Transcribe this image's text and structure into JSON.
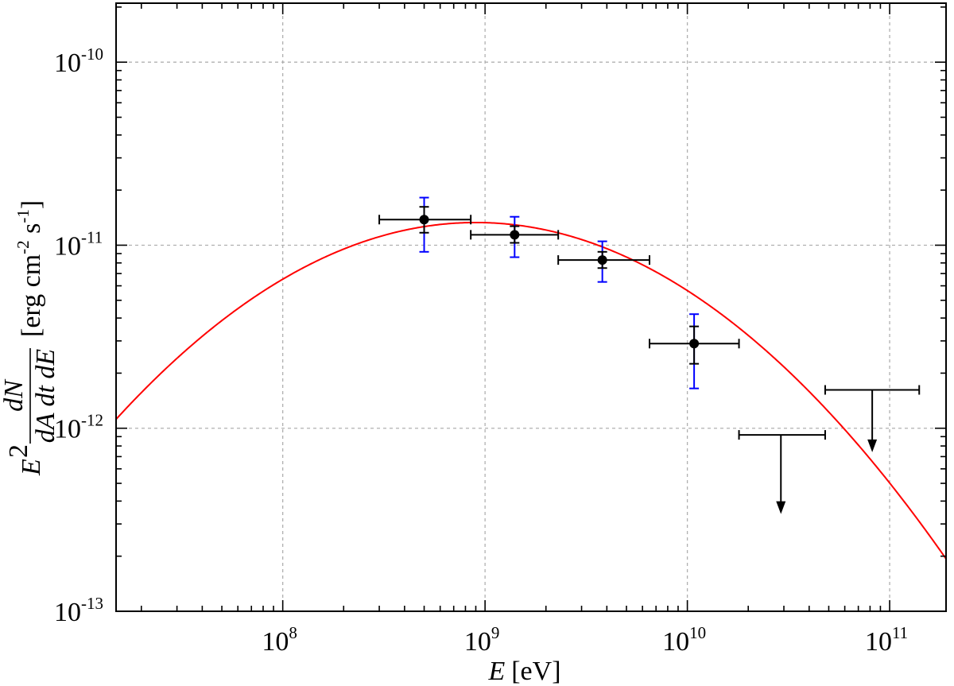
{
  "chart_data": {
    "type": "scatter",
    "xscale": "log",
    "yscale": "log",
    "xlim": [
      15000000,
      190000000000
    ],
    "ylim": [
      1e-13,
      2.1e-10
    ],
    "grid": true,
    "xticks": [
      {
        "value": 100000000,
        "base": "10",
        "exp": "8"
      },
      {
        "value": 1000000000,
        "base": "10",
        "exp": "9"
      },
      {
        "value": 10000000000,
        "base": "10",
        "exp": "10"
      },
      {
        "value": 100000000000,
        "base": "10",
        "exp": "11"
      }
    ],
    "yticks": [
      {
        "value": 1e-13,
        "base": "10",
        "exp": "-13"
      },
      {
        "value": 1e-12,
        "base": "10",
        "exp": "-12"
      },
      {
        "value": 1e-11,
        "base": "10",
        "exp": "-11"
      },
      {
        "value": 1e-10,
        "base": "10",
        "exp": "-10"
      }
    ],
    "xlabel": {
      "var": "E",
      "unit": "[eV]"
    },
    "ylabel": {
      "prefix": "E",
      "prefix_exp": "2",
      "numerator": "dN",
      "denominator": "dA dt dE",
      "unit_open": "[erg cm",
      "unit_cm_exp": "-2",
      "unit_s": " s",
      "unit_s_exp": "-1",
      "unit_close": "]"
    },
    "points": [
      {
        "x": 500000000,
        "y": 1.38e-11,
        "xlo": 300000000,
        "xhi": 850000000,
        "ylo_stat": 1.17e-11,
        "yhi_stat": 1.62e-11,
        "ylo_sys": 9.2e-12,
        "yhi_sys": 1.82e-11
      },
      {
        "x": 1400000000,
        "y": 1.14e-11,
        "xlo": 850000000,
        "xhi": 2300000000,
        "ylo_stat": 1.03e-11,
        "yhi_stat": 1.27e-11,
        "ylo_sys": 8.6e-12,
        "yhi_sys": 1.43e-11
      },
      {
        "x": 3800000000,
        "y": 8.3e-12,
        "xlo": 2300000000,
        "xhi": 6500000000,
        "ylo_stat": 7.5e-12,
        "yhi_stat": 9.2e-12,
        "ylo_sys": 6.3e-12,
        "yhi_sys": 1.05e-11
      },
      {
        "x": 10800000000,
        "y": 2.9e-12,
        "xlo": 6500000000,
        "xhi": 18000000000,
        "ylo_stat": 2.25e-12,
        "yhi_stat": 3.6e-12,
        "ylo_sys": 1.65e-12,
        "yhi_sys": 4.2e-12
      }
    ],
    "upper_limits": [
      {
        "x": 29000000000,
        "y": 9.2e-13,
        "xlo": 18000000000,
        "xhi": 48000000000,
        "arrow_to": 3.4e-13
      },
      {
        "x": 82000000000,
        "y": 1.62e-12,
        "xlo": 48000000000,
        "xhi": 140000000000,
        "arrow_to": 7.4e-13
      }
    ],
    "model": {
      "type": "log-parabola",
      "peak_x": 900000000,
      "peak_y": 1.33e-11,
      "curvature": 0.34,
      "color": "#ff0000"
    },
    "colors": {
      "points": "#000000",
      "sys_errors": "#0000ff",
      "model": "#ff0000"
    }
  }
}
